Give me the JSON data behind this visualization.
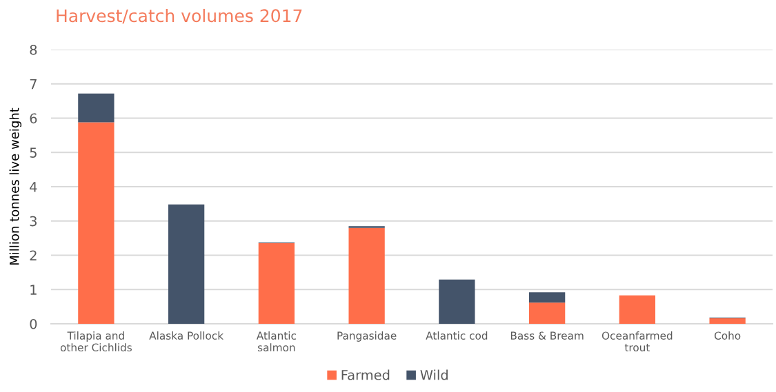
{
  "chart_data": {
    "type": "bar",
    "title": "Harvest/catch volumes 2017",
    "ylabel": "Million tonnes live weight",
    "categories": [
      "Tilapia and\nother Cichlids",
      "Alaska Pollock",
      "Atlantic\nsalmon",
      "Pangasidae",
      "Atlantic cod",
      "Bass & Bream",
      "Oceanfarmed\ntrout",
      "Coho"
    ],
    "series": [
      {
        "name": "Farmed",
        "color": "#ff6e4a",
        "values": [
          5.88,
          0,
          2.35,
          2.8,
          0,
          0.62,
          0.83,
          0.16
        ]
      },
      {
        "name": "Wild",
        "color": "#44546a",
        "values": [
          0.84,
          3.48,
          0.02,
          0.05,
          1.29,
          0.3,
          0,
          0.02
        ]
      }
    ],
    "stacked": true,
    "ylim": [
      0,
      8
    ],
    "yticks": [
      0,
      1,
      2,
      3,
      4,
      5,
      6,
      7,
      8
    ],
    "grid": "y",
    "legend": "bottom"
  }
}
